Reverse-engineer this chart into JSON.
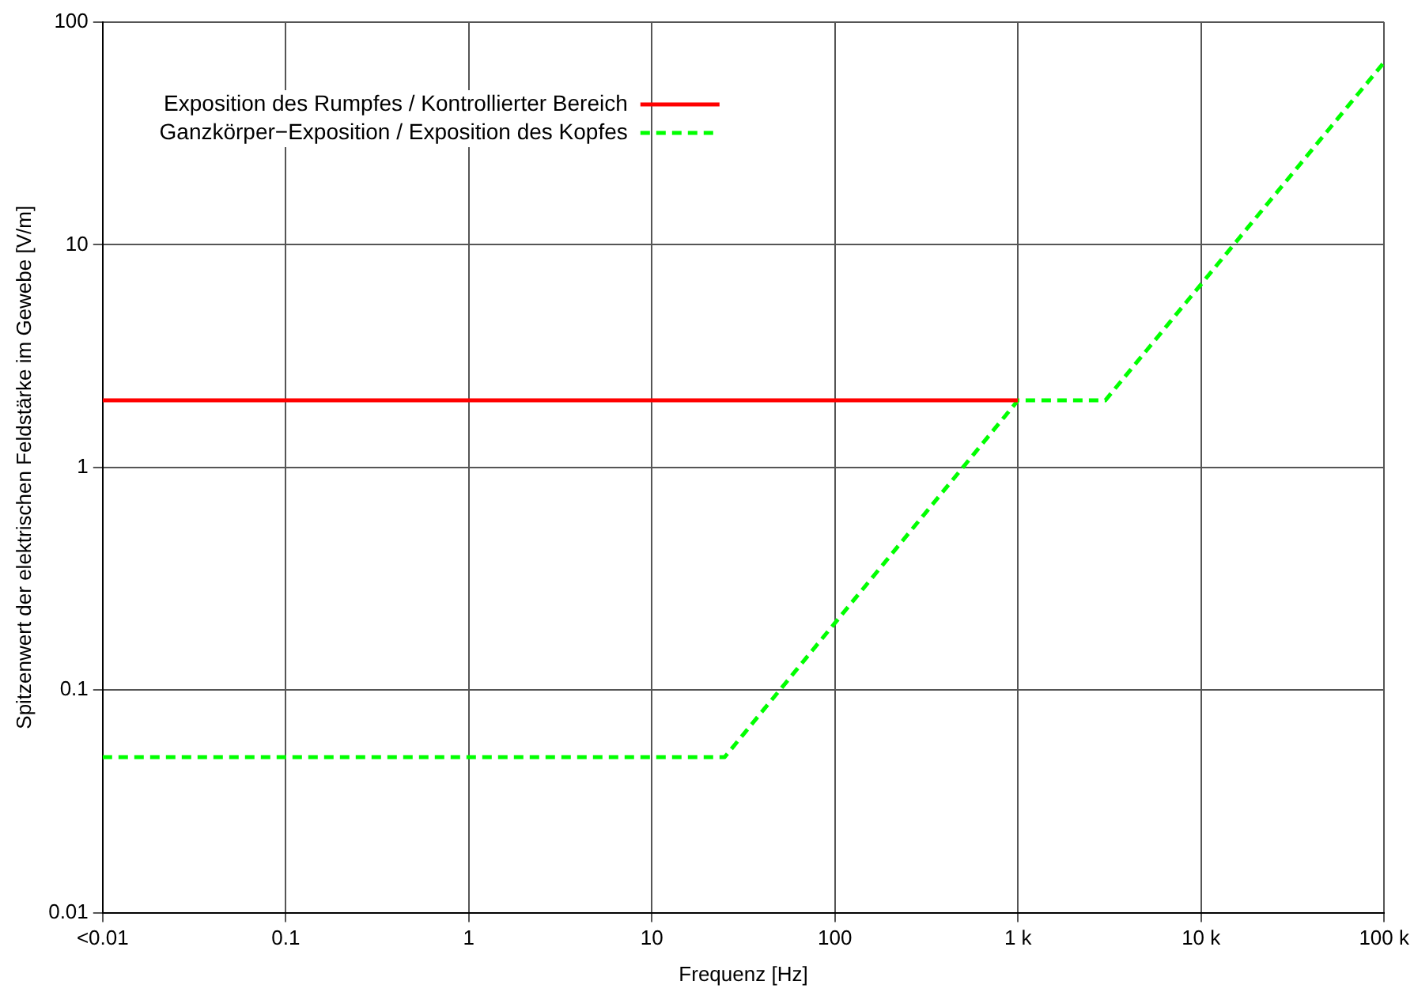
{
  "chart_data": {
    "type": "line",
    "xlabel": "Frequenz [Hz]",
    "ylabel": "Spitzenwert der elektrischen Feldstärke im Gewebe [V/m]",
    "log": "xy",
    "grid": true,
    "legend": "top left",
    "marker": "none",
    "xlim": [
      0.01,
      100000
    ],
    "xticks": [
      {
        "value": 0.01,
        "label": "<0.01"
      },
      0.1,
      1,
      10,
      100,
      {
        "value": 1000,
        "label": "1 k"
      },
      {
        "value": 10000,
        "label": "10 k"
      },
      {
        "value": 100000,
        "label": "100 k"
      }
    ],
    "ylim": [
      0.01,
      100
    ],
    "yticks": [
      0.01,
      0.1,
      1,
      10,
      100
    ],
    "series": [
      {
        "name": "Exposition des Rumpfes / Kontrollierter Bereich",
        "color": "#ff0000",
        "line_style": "solid",
        "x": [
          0.01,
          1000
        ],
        "values": [
          2,
          2
        ]
      },
      {
        "name": "Ganzkörper−Exposition / Exposition des Kopfes",
        "color": "#00ff00",
        "line_style": "dashed",
        "x": [
          0.01,
          25,
          1000,
          3000,
          100000
        ],
        "values": [
          0.05,
          0.05,
          2,
          2,
          66
        ]
      }
    ]
  }
}
